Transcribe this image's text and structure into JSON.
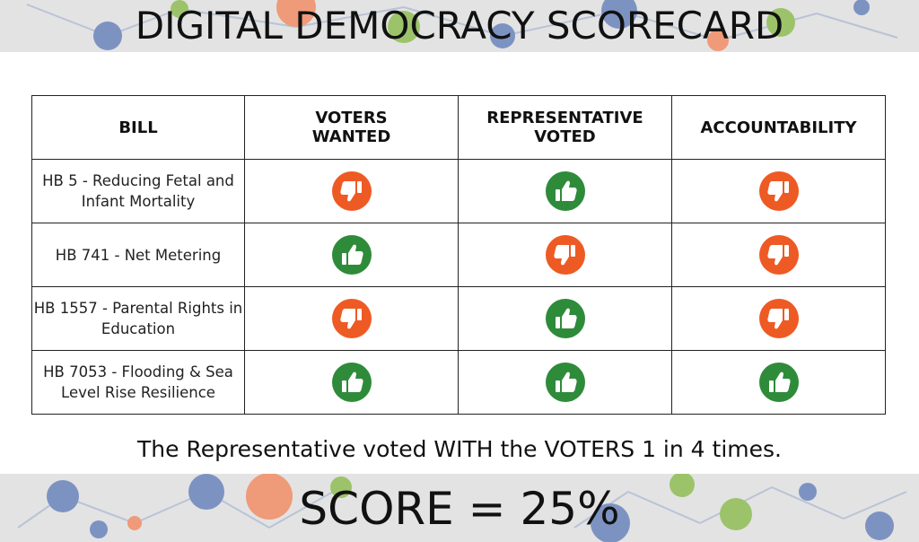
{
  "title": "DIGITAL DEMOCRACY SCORECARD",
  "colors": {
    "thumbs_up": "#2e8b3a",
    "thumbs_down": "#ee5a24",
    "band_bg": "#e3e3e3",
    "node_blue": "#7c93c2",
    "node_orange": "#ef9a78",
    "node_green": "#9cc36a"
  },
  "table": {
    "headers": {
      "bill": "BILL",
      "voters_wanted": "VOTERS\nWANTED",
      "representative_voted": "REPRESENTATIVE\nVOTED",
      "accountability": "ACCOUNTABILITY"
    },
    "rows": [
      {
        "bill": "HB 5 - Reducing Fetal and Infant Mortality",
        "voters_wanted": "thumbs-down",
        "representative_voted": "thumbs-up",
        "accountability": "thumbs-down"
      },
      {
        "bill": "HB 741 - Net Metering",
        "voters_wanted": "thumbs-up",
        "representative_voted": "thumbs-down",
        "accountability": "thumbs-down"
      },
      {
        "bill": "HB 1557 - Parental Rights in Education",
        "voters_wanted": "thumbs-down",
        "representative_voted": "thumbs-up",
        "accountability": "thumbs-down"
      },
      {
        "bill": "HB 7053 - Flooding & Sea Level Rise Resilience",
        "voters_wanted": "thumbs-up",
        "representative_voted": "thumbs-up",
        "accountability": "thumbs-up"
      }
    ]
  },
  "summary": "The Representative voted WITH the VOTERS 1 in 4 times.",
  "score": "SCORE = 25%"
}
